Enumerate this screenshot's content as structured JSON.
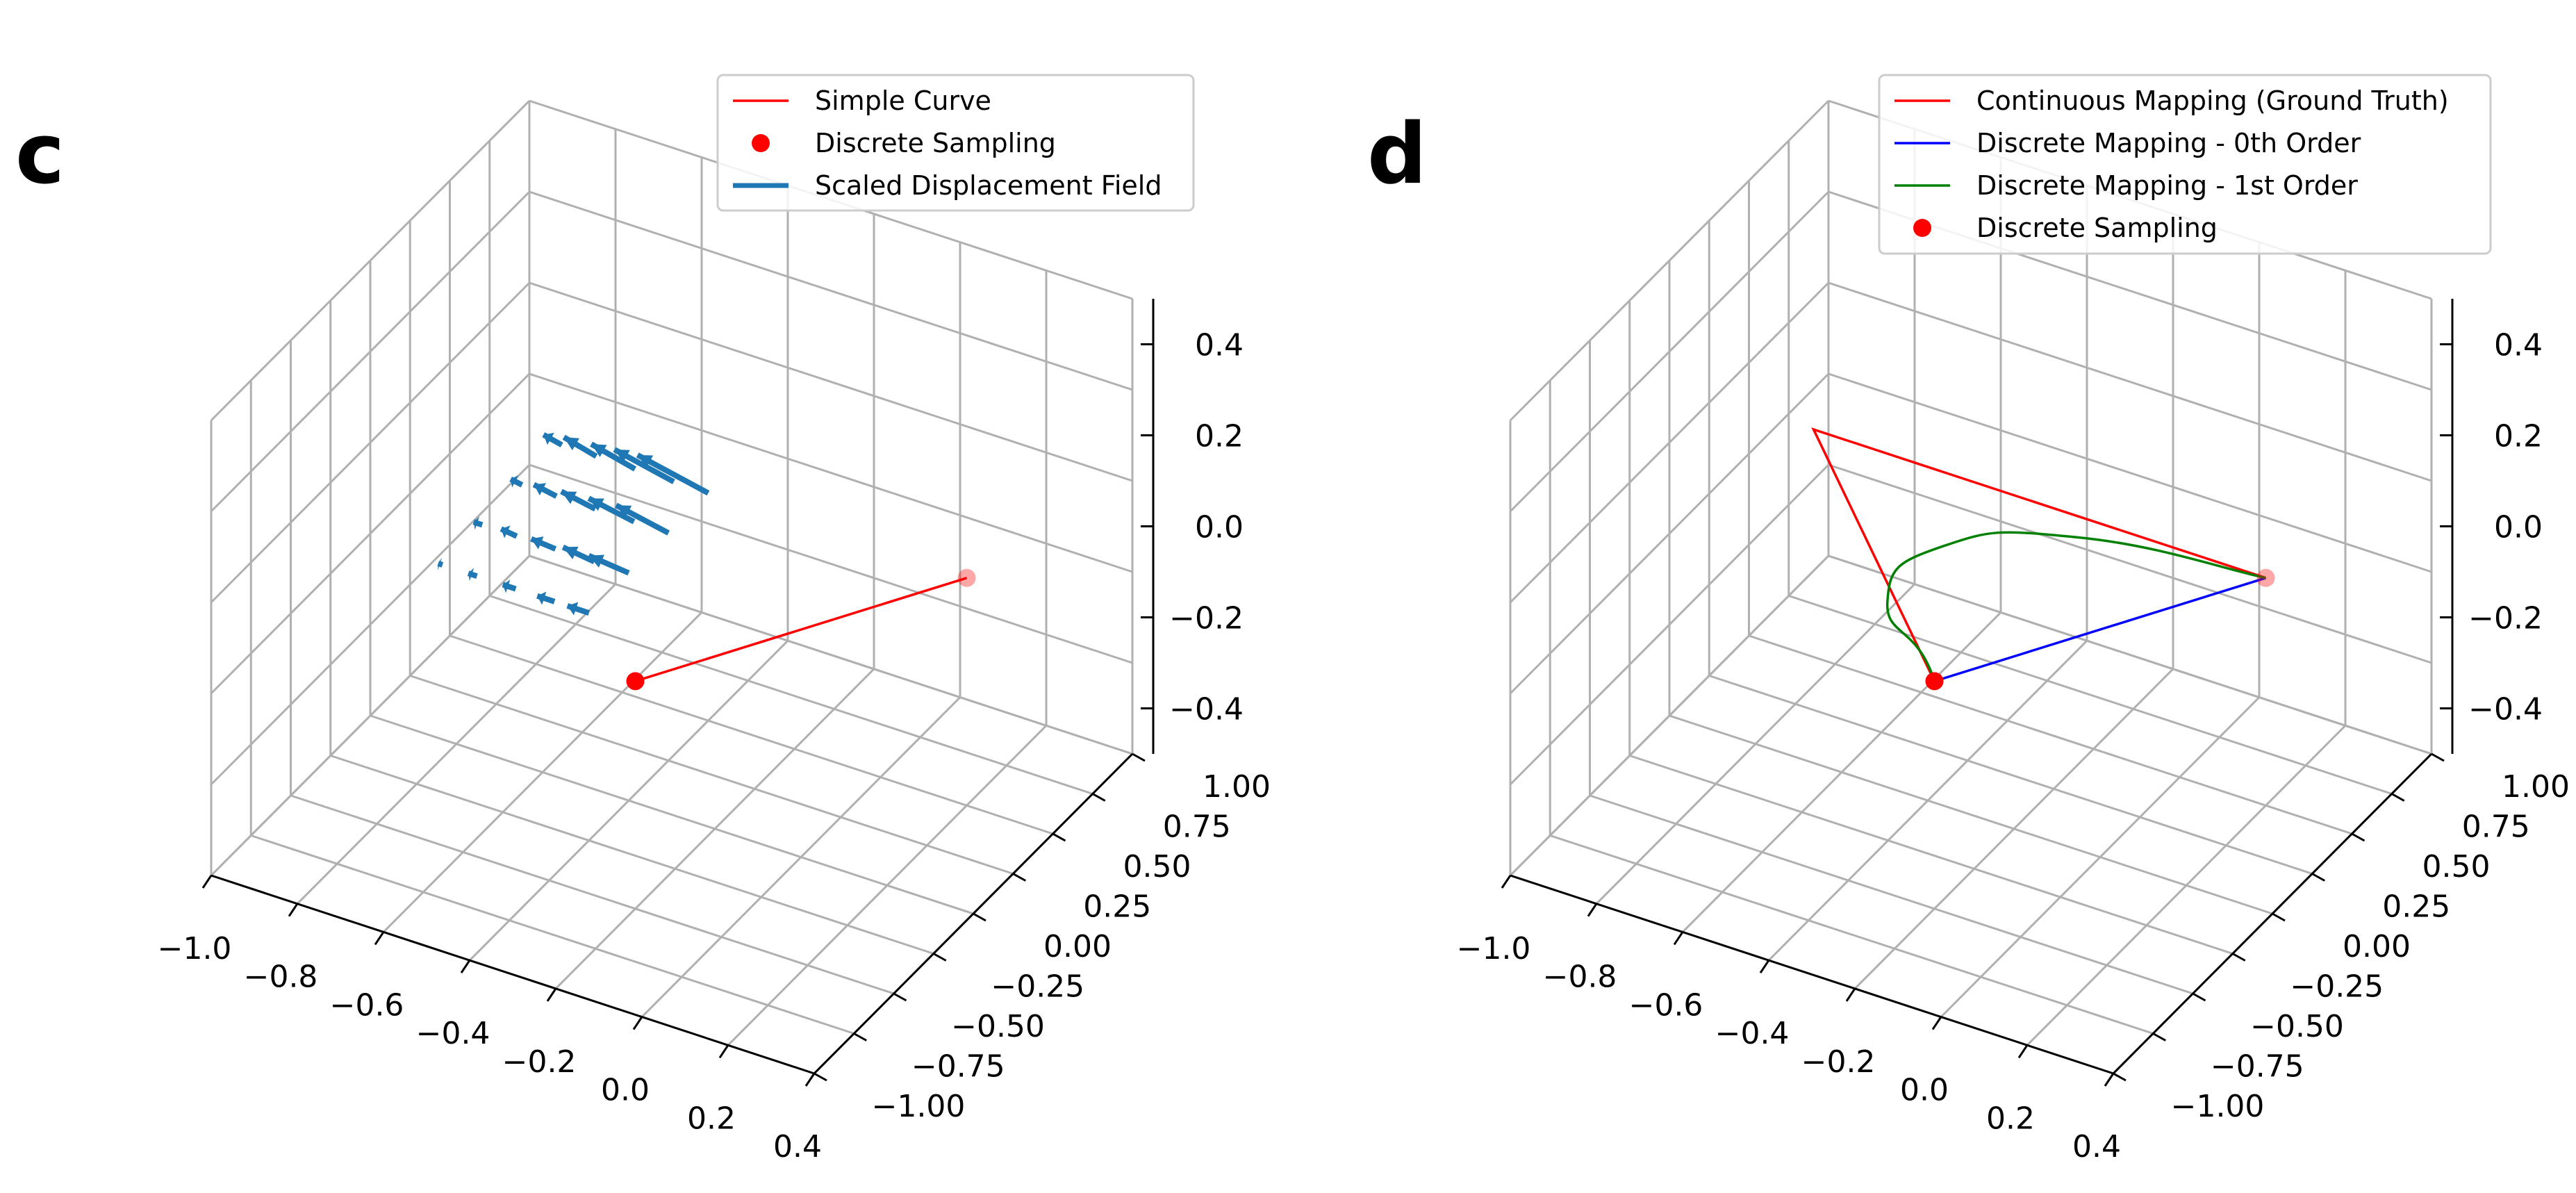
{
  "panels": [
    {
      "label": "c",
      "legend": [
        {
          "name": "Simple Curve",
          "kind": "line",
          "color": "#ff0000"
        },
        {
          "name": "Discrete Sampling",
          "kind": "marker",
          "color": "#ff0000"
        },
        {
          "name": "Scaled Displacement Field",
          "kind": "thickline",
          "color": "#1f77b4"
        }
      ]
    },
    {
      "label": "d",
      "legend": [
        {
          "name": "Continuous Mapping (Ground Truth)",
          "kind": "line",
          "color": "#ff0000"
        },
        {
          "name": "Discrete Mapping - 0th Order",
          "kind": "line",
          "color": "#0000ff"
        },
        {
          "name": "Discrete Mapping - 1st Order",
          "kind": "line",
          "color": "#008000"
        },
        {
          "name": "Discrete Sampling",
          "kind": "marker",
          "color": "#ff0000"
        }
      ]
    }
  ],
  "chart_data": [
    {
      "type": "3d-line-quiver",
      "panel": "c",
      "xlim": [
        -1.0,
        0.4
      ],
      "ylim": [
        -1.0,
        1.0
      ],
      "zlim": [
        -0.5,
        0.5
      ],
      "x_ticks": [
        "−1.0",
        "−0.8",
        "−0.6",
        "−0.4",
        "−0.2",
        "0.0",
        "0.2",
        "0.4"
      ],
      "y_ticks": [
        "−1.00",
        "−0.75",
        "−0.50",
        "−0.25",
        "0.00",
        "0.25",
        "0.50",
        "0.75",
        "1.00"
      ],
      "z_ticks": [
        "−0.4",
        "−0.2",
        "0.0",
        "0.2",
        "0.4"
      ],
      "grid": true,
      "legend_position": "top-right",
      "series": [
        {
          "name": "Simple Curve",
          "color": "#ff0000",
          "points": [
            [
              -0.2,
              -0.5,
              0.0
            ],
            [
              0.2,
              0.5,
              0.0
            ]
          ]
        },
        {
          "name": "Discrete Sampling",
          "color": "#ff0000",
          "points": [
            [
              -0.2,
              -0.5,
              0.0
            ],
            [
              0.2,
              0.5,
              0.0
            ]
          ]
        },
        {
          "name": "Scaled Displacement Field",
          "color": "#1f77b4",
          "vectors": [
            [
              -0.74,
              0.5,
              0,
              -0.05,
              0.02,
              0
            ],
            [
              -0.66,
              0.5,
              0,
              -0.09,
              0.04,
              0
            ],
            [
              -0.57,
              0.5,
              0,
              -0.12,
              0.05,
              0
            ],
            [
              -0.48,
              0.5,
              0,
              -0.16,
              0.06,
              0
            ],
            [
              -0.4,
              0.5,
              0,
              -0.19,
              0.07,
              0
            ],
            [
              -0.74,
              0.25,
              0,
              -0.03,
              0.01,
              0
            ],
            [
              -0.66,
              0.25,
              0,
              -0.06,
              0.02,
              0
            ],
            [
              -0.57,
              0.25,
              0,
              -0.09,
              0.03,
              0
            ],
            [
              -0.48,
              0.25,
              0,
              -0.12,
              0.04,
              0
            ],
            [
              -0.4,
              0.25,
              0,
              -0.14,
              0.05,
              0
            ],
            [
              -0.74,
              0.0,
              0,
              -0.02,
              0.0,
              0
            ],
            [
              -0.66,
              0.0,
              0,
              -0.04,
              0.01,
              0
            ],
            [
              -0.57,
              0.0,
              0,
              -0.06,
              0.01,
              0
            ],
            [
              -0.48,
              0.0,
              0,
              -0.08,
              0.02,
              0
            ],
            [
              -0.4,
              0.0,
              0,
              -0.1,
              0.02,
              0
            ],
            [
              -0.74,
              -0.25,
              0,
              -0.01,
              0.0,
              0
            ],
            [
              -0.66,
              -0.25,
              0,
              -0.02,
              0.0,
              0
            ],
            [
              -0.57,
              -0.25,
              0,
              -0.03,
              0.0,
              0
            ],
            [
              -0.48,
              -0.25,
              0,
              -0.04,
              0.0,
              0
            ],
            [
              -0.4,
              -0.25,
              0,
              -0.05,
              0.0,
              0
            ]
          ]
        }
      ]
    },
    {
      "type": "3d-line",
      "panel": "d",
      "xlim": [
        -1.0,
        0.4
      ],
      "ylim": [
        -1.0,
        1.0
      ],
      "zlim": [
        -0.5,
        0.5
      ],
      "x_ticks": [
        "−1.0",
        "−0.8",
        "−0.6",
        "−0.4",
        "−0.2",
        "0.0",
        "0.2",
        "0.4"
      ],
      "y_ticks": [
        "−1.00",
        "−0.75",
        "−0.50",
        "−0.25",
        "0.00",
        "0.25",
        "0.50",
        "0.75",
        "1.00"
      ],
      "z_ticks": [
        "−0.4",
        "−0.2",
        "0.0",
        "0.2",
        "0.4"
      ],
      "grid": true,
      "legend_position": "top-right",
      "series": [
        {
          "name": "Continuous Mapping (Ground Truth)",
          "color": "#ff0000",
          "points": [
            [
              -0.2,
              -0.5,
              0.0
            ],
            [
              -0.85,
              0.5,
              0.0
            ],
            [
              0.2,
              0.5,
              0.0
            ]
          ]
        },
        {
          "name": "Discrete Mapping - 0th Order",
          "color": "#0000ff",
          "points": [
            [
              -0.2,
              -0.5,
              0.0
            ],
            [
              0.2,
              0.5,
              0.0
            ]
          ]
        },
        {
          "name": "Discrete Mapping - 1st Order",
          "color": "#008000",
          "points": [
            [
              -0.2,
              -0.5,
              0.0
            ],
            [
              -0.42,
              -0.2,
              0.0
            ],
            [
              -0.42,
              0.15,
              0.0
            ],
            [
              -0.2,
              0.4,
              0.0
            ],
            [
              0.2,
              0.5,
              0.0
            ]
          ]
        },
        {
          "name": "Discrete Sampling",
          "color": "#ff0000",
          "points": [
            [
              -0.2,
              -0.5,
              0.0
            ],
            [
              0.2,
              0.5,
              0.0
            ]
          ]
        }
      ]
    }
  ]
}
